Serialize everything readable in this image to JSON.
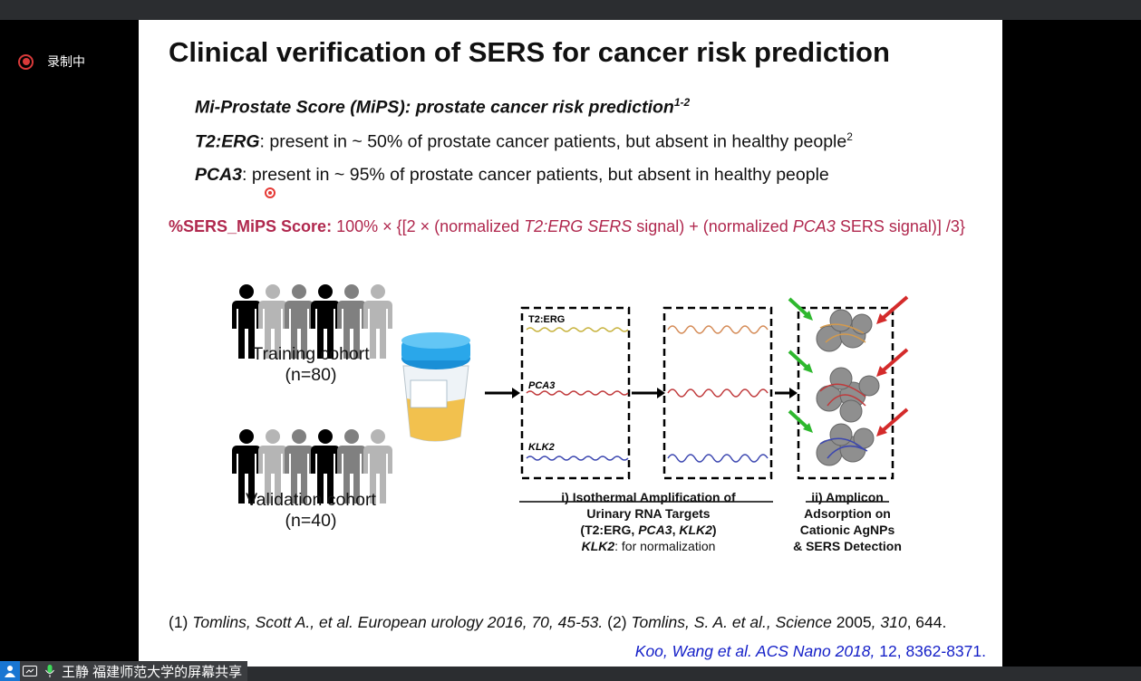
{
  "recording": {
    "label": "录制中"
  },
  "slide": {
    "title": "Clinical verification of SERS for cancer risk prediction",
    "mips": {
      "text": "Mi-Prostate Score (MiPS): prostate cancer risk prediction",
      "sup": "1-2"
    },
    "t2erg": {
      "name": "T2:ERG",
      "text": ": present in ~ 50% of prostate cancer patients, but absent in healthy people",
      "sup": "2"
    },
    "pca3": {
      "name": "PCA3",
      "text": ": present in ~ 95% of prostate cancer patients, but absent in healthy people"
    },
    "formula": {
      "label": "%SERS_MiPS Score:",
      "p1": " 100% × {[2 × (normalized ",
      "p2": "T2:ERG SERS",
      "p3": " signal) + (normalized ",
      "p4": "PCA3",
      "p5": " SERS signal)] /3}"
    },
    "training": {
      "label": "Training cohort",
      "n": "(n=80)"
    },
    "validation": {
      "label": "Validation cohort",
      "n": "(n=40)"
    },
    "targets": {
      "t2erg": "T2:ERG",
      "pca3": "PCA3",
      "klk2": "KLK2"
    },
    "caption1": {
      "line1": "i) Isothermal Amplification of",
      "line2": "Urinary RNA Targets",
      "line3a": "(T2:ERG, ",
      "line3b": "PCA3",
      "line3c": ", ",
      "line3d": "KLK2",
      "line3e": ")",
      "line4a": "KLK2",
      "line4b": ": for normalization"
    },
    "caption2": {
      "line1": "ii) Amplicon",
      "line2": "Adsorption on",
      "line3": "Cationic AgNPs",
      "line4": "& SERS Detection"
    },
    "ref1": {
      "a": "(1) ",
      "b": "Tomlins, Scott A., et al. European urology 2016, 70, 45-53.",
      "c": " (2) ",
      "d": "Tomlins, S. A. et al., Science ",
      "e": "2005",
      "f": ", 310",
      "g": ", 644."
    },
    "ref2": {
      "a": "Koo, Wang et al. ACS Nano 2018,",
      "b": " 12, 8362-8371."
    }
  },
  "share": {
    "label": "王静 福建师范大学的屏幕共享"
  }
}
